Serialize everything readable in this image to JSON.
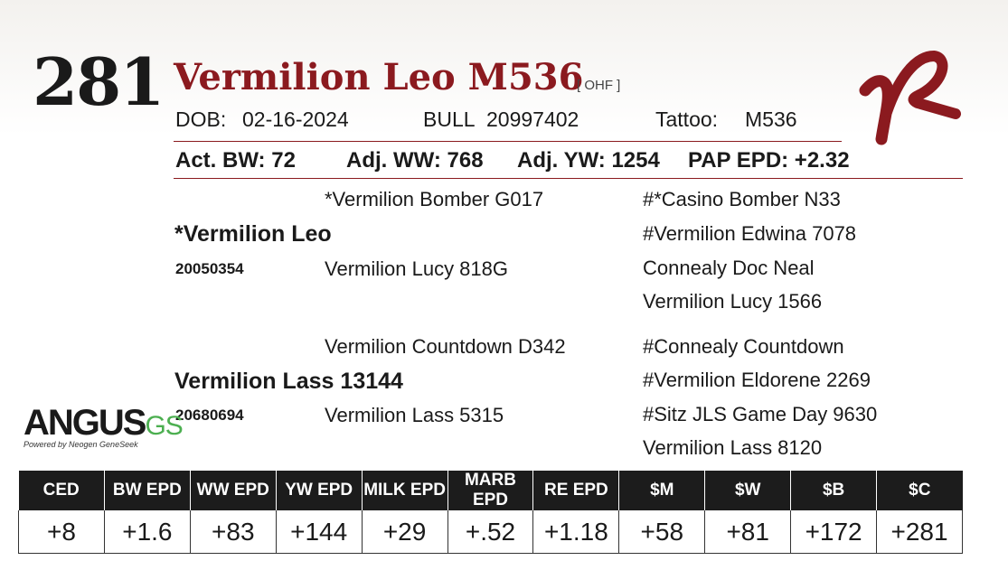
{
  "lot_number": "281",
  "animal_name": "Vermilion Leo M536",
  "tag": "[ OHF ]",
  "dob_label": "DOB:",
  "dob_value": "02-16-2024",
  "sex": "BULL",
  "registration": "20997402",
  "tattoo_label": "Tattoo:",
  "tattoo_value": "M536",
  "performance": {
    "act_bw": "Act. BW: 72",
    "adj_ww": "Adj. WW: 768",
    "adj_yw": "Adj. YW: 1254",
    "pap_epd": "PAP EPD: +2.32"
  },
  "pedigree": {
    "sire": "*Vermilion Leo",
    "sire_reg": "20050354",
    "dam": "Vermilion Lass 13144",
    "dam_reg": "20680694",
    "sire_sire": "*Vermilion Bomber G017",
    "sire_dam": "Vermilion Lucy 818G",
    "dam_sire": "Vermilion Countdown D342",
    "dam_dam": "Vermilion Lass 5315",
    "ss_sire": "#*Casino Bomber N33",
    "ss_dam": "#Vermilion Edwina 7078",
    "sd_sire": "Connealy Doc Neal",
    "sd_dam": "Vermilion Lucy 1566",
    "ds_sire": "#Connealy Countdown",
    "ds_dam": "#Vermilion Eldorene 2269",
    "dd_sire": "#Sitz JLS Game Day 9630",
    "dd_dam": "Vermilion Lass 8120"
  },
  "logo": {
    "angus": "ANGUS",
    "gs": "GS",
    "tagline": "Powered by Neogen GeneSeek"
  },
  "epd_headers": [
    "CED",
    "BW EPD",
    "WW EPD",
    "YW EPD",
    "MILK EPD",
    "MARB EPD",
    "RE EPD",
    "$M",
    "$W",
    "$B",
    "$C"
  ],
  "epd_values": [
    "+8",
    "+1.6",
    "+83",
    "+144",
    "+29",
    "+.52",
    "+1.18",
    "+58",
    "+81",
    "+172",
    "+281"
  ],
  "colors": {
    "accent": "#8b1a1f",
    "header_bg": "#1c1c1c"
  }
}
